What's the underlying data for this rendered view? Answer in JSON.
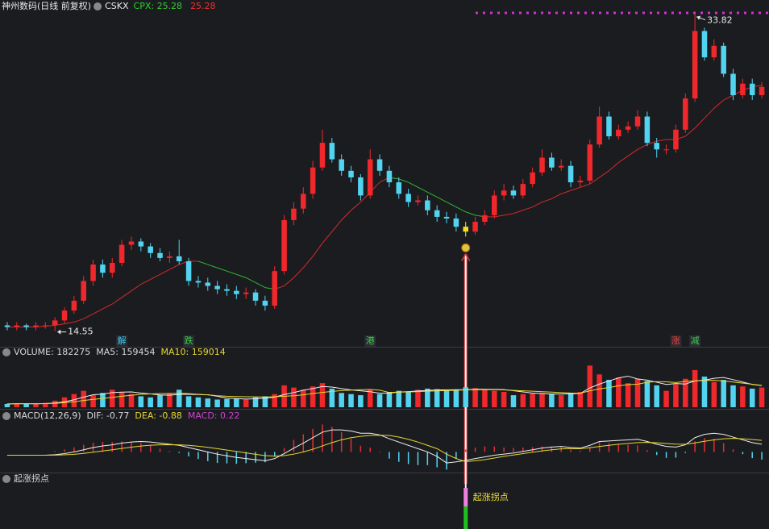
{
  "header": {
    "title": "神州数码(日线 前复权)",
    "indicator": "CSKX",
    "cpx": "CPX: 25.28",
    "cpx_value": "25.28"
  },
  "chart_data": [
    {
      "type": "candlestick",
      "open": [
        14.9,
        14.8,
        14.9,
        14.8,
        14.9,
        14.9,
        15.2,
        15.8,
        16.4,
        17.6,
        18.6,
        18.1,
        18.7,
        19.8,
        20.0,
        19.7,
        19.3,
        19.0,
        19.1,
        18.8,
        17.6,
        17.5,
        17.3,
        17.1,
        17.0,
        16.8,
        16.9,
        16.4,
        16.1,
        18.2,
        21.3,
        22.0,
        22.9,
        24.5,
        26.0,
        25.0,
        24.3,
        23.9,
        22.8,
        25.0,
        24.3,
        23.6,
        22.9,
        22.4,
        22.5,
        21.9,
        21.5,
        21.4,
        20.9,
        20.6,
        21.2,
        21.6,
        22.8,
        23.1,
        22.8,
        23.5,
        24.2,
        25.1,
        24.5,
        24.6,
        23.6,
        23.7,
        25.9,
        27.6,
        26.4,
        26.8,
        27.0,
        27.6,
        26.0,
        25.6,
        25.6,
        26.8,
        28.7,
        32.8,
        31.2,
        31.9,
        30.2,
        28.9,
        29.6,
        28.9
      ],
      "high": [
        15.1,
        15.1,
        15.0,
        15.1,
        15.1,
        15.4,
        16.0,
        16.7,
        17.9,
        18.9,
        18.9,
        19.0,
        20.1,
        20.3,
        20.2,
        19.9,
        19.6,
        19.4,
        20.1,
        19.0,
        17.9,
        17.8,
        17.6,
        17.4,
        17.3,
        17.2,
        17.1,
        16.7,
        18.5,
        21.6,
        22.4,
        23.3,
        24.9,
        26.8,
        26.3,
        25.3,
        24.6,
        24.1,
        25.6,
        25.3,
        24.6,
        23.9,
        23.2,
        22.8,
        22.8,
        22.2,
        21.8,
        21.7,
        21.2,
        21.5,
        21.9,
        23.1,
        23.5,
        23.4,
        23.8,
        24.5,
        25.6,
        25.4,
        25.0,
        24.9,
        24.0,
        26.2,
        28.2,
        27.9,
        27.1,
        27.3,
        28.0,
        27.9,
        26.3,
        25.9,
        27.1,
        29.0,
        33.82,
        33.0,
        32.3,
        32.1,
        30.5,
        29.9,
        29.9,
        29.7
      ],
      "low": [
        14.6,
        14.6,
        14.6,
        14.6,
        14.7,
        14.55,
        15.0,
        15.6,
        16.2,
        17.3,
        17.8,
        17.8,
        18.5,
        19.5,
        19.4,
        19.0,
        18.8,
        18.7,
        18.6,
        17.3,
        17.2,
        17.0,
        16.8,
        16.7,
        16.5,
        16.5,
        16.1,
        15.8,
        15.9,
        18.0,
        21.0,
        21.7,
        22.6,
        24.3,
        24.8,
        24.0,
        23.6,
        22.5,
        22.6,
        24.0,
        23.3,
        22.6,
        22.1,
        22.2,
        21.6,
        21.2,
        21.1,
        20.6,
        20.3,
        20.4,
        21.0,
        21.4,
        22.5,
        22.6,
        22.6,
        23.3,
        24.0,
        24.3,
        24.3,
        23.3,
        23.3,
        23.5,
        25.7,
        26.2,
        26.2,
        26.6,
        26.8,
        25.8,
        25.1,
        25.3,
        25.4,
        26.6,
        28.5,
        31.0,
        31.0,
        30.0,
        28.6,
        28.7,
        28.6,
        28.7
      ],
      "close": [
        14.8,
        14.9,
        14.8,
        14.9,
        14.9,
        15.2,
        15.8,
        16.4,
        17.6,
        18.6,
        18.1,
        18.7,
        19.8,
        20.0,
        19.7,
        19.3,
        19.0,
        19.1,
        18.8,
        17.6,
        17.5,
        17.3,
        17.1,
        17.0,
        16.8,
        16.9,
        16.4,
        16.1,
        18.2,
        21.3,
        22.0,
        22.9,
        24.5,
        26.0,
        25.0,
        24.3,
        23.9,
        22.8,
        25.0,
        24.3,
        23.6,
        22.9,
        22.4,
        22.5,
        21.9,
        21.5,
        21.4,
        20.9,
        20.6,
        21.2,
        21.6,
        22.8,
        23.1,
        22.8,
        23.5,
        24.2,
        25.1,
        24.5,
        24.6,
        23.6,
        23.7,
        25.9,
        27.6,
        26.4,
        26.8,
        27.0,
        27.6,
        26.0,
        25.6,
        25.6,
        26.8,
        28.7,
        32.8,
        31.2,
        31.9,
        30.2,
        28.9,
        29.6,
        28.9,
        29.4
      ],
      "ma": [
        14.8,
        14.8,
        14.8,
        14.8,
        14.85,
        14.9,
        15.0,
        15.1,
        15.3,
        15.6,
        15.9,
        16.2,
        16.6,
        17.0,
        17.4,
        17.7,
        18.0,
        18.3,
        18.6,
        18.8,
        18.8,
        18.6,
        18.4,
        18.2,
        18.0,
        17.8,
        17.5,
        17.2,
        17.1,
        17.3,
        17.8,
        18.4,
        19.1,
        19.9,
        20.6,
        21.3,
        21.9,
        22.4,
        23.0,
        23.6,
        23.9,
        23.8,
        23.6,
        23.3,
        23.0,
        22.7,
        22.4,
        22.1,
        21.8,
        21.6,
        21.5,
        21.5,
        21.6,
        21.7,
        21.9,
        22.1,
        22.4,
        22.6,
        22.9,
        23.1,
        23.3,
        23.5,
        23.9,
        24.3,
        24.8,
        25.2,
        25.6,
        25.9,
        26.1,
        26.2,
        26.2,
        26.4,
        26.9,
        27.5,
        28.1,
        28.6,
        28.9,
        29.2,
        29.4,
        29.5
      ],
      "ylim": [
        13.6,
        34.0
      ],
      "up_color": "#f0282c",
      "down_color": "#52d4f0",
      "ma_up_color": "#d42a2a",
      "ma_down_color": "#2fb82f",
      "highlight_index": 48,
      "highlight_color": "#f0e020",
      "events": [
        {
          "index": 12,
          "label": "解",
          "color": "#3cc8f0"
        },
        {
          "index": 19,
          "label": "跌",
          "color": "#3cd04a"
        },
        {
          "index": 38,
          "label": "港",
          "color": "#3cd04a"
        },
        {
          "index": 70,
          "label": "涨",
          "color": "#f04040"
        },
        {
          "index": 72,
          "label": "减",
          "color": "#3cd04a"
        }
      ]
    },
    {
      "type": "volume",
      "legend": [
        {
          "text": "VOLUME: 182275",
          "color": "#d8d8d8"
        },
        {
          "text": "MA5: 159454",
          "color": "#d8d8d8"
        },
        {
          "text": "MA10: 159014",
          "color": "#e8d830"
        }
      ],
      "values": [
        30000,
        35000,
        32000,
        28000,
        40000,
        60000,
        90000,
        120000,
        150000,
        110000,
        130000,
        160000,
        140000,
        120000,
        100000,
        90000,
        110000,
        130000,
        160000,
        100000,
        90000,
        80000,
        70000,
        75000,
        80000,
        70000,
        90000,
        100000,
        120000,
        200000,
        180000,
        160000,
        190000,
        220000,
        170000,
        130000,
        120000,
        110000,
        160000,
        120000,
        140000,
        150000,
        145000,
        160000,
        170000,
        165000,
        150000,
        155000,
        182275,
        175000,
        160000,
        150000,
        140000,
        110000,
        120000,
        125000,
        130000,
        120000,
        110000,
        130000,
        140000,
        380000,
        300000,
        250000,
        270000,
        220000,
        260000,
        240000,
        200000,
        150000,
        210000,
        260000,
        340000,
        280000,
        230000,
        250000,
        200000,
        190000,
        170000,
        180000
      ],
      "ma5": [
        30000,
        32000,
        32000,
        31000,
        33000,
        39000,
        50000,
        68000,
        92000,
        114000,
        120000,
        134000,
        138000,
        140000,
        130000,
        122000,
        112000,
        110000,
        118000,
        118000,
        116000,
        114000,
        100000,
        83000,
        79000,
        75000,
        77000,
        83000,
        92000,
        116000,
        134000,
        156000,
        170000,
        190000,
        184000,
        170000,
        158000,
        150000,
        142000,
        128000,
        130000,
        138000,
        143000,
        148000,
        153000,
        158000,
        158000,
        160000,
        159454,
        165000,
        164000,
        163000,
        161000,
        151000,
        140000,
        129000,
        125000,
        121000,
        121000,
        123000,
        126000,
        176000,
        212000,
        240000,
        268000,
        284000,
        258000,
        248000,
        228000,
        208000,
        216000,
        212000,
        240000,
        248000,
        264000,
        272000,
        252000,
        230000,
        208000,
        198000
      ],
      "ma10": [
        30000,
        31000,
        32000,
        32000,
        33000,
        35000,
        42000,
        50000,
        62000,
        72000,
        80000,
        90000,
        100000,
        110000,
        118000,
        122000,
        125000,
        125000,
        128000,
        124000,
        118000,
        113000,
        105000,
        100000,
        98000,
        96000,
        95000,
        93000,
        96000,
        100000,
        105000,
        113000,
        125000,
        135000,
        145000,
        152000,
        157000,
        160000,
        162000,
        156000,
        135000,
        138000,
        140000,
        143000,
        146000,
        149000,
        152000,
        155000,
        159014,
        160000,
        161000,
        160000,
        158000,
        154000,
        150000,
        146000,
        142000,
        138000,
        134000,
        130000,
        128000,
        150000,
        168000,
        180000,
        196000,
        206000,
        210000,
        228000,
        234000,
        232000,
        226000,
        236000,
        240000,
        244000,
        246000,
        240000,
        230000,
        220000,
        210000,
        200000
      ],
      "ylim": [
        0,
        420000
      ],
      "ma5_color": "#f0f0f0",
      "ma10_color": "#e8d830"
    },
    {
      "type": "macd",
      "legend": [
        {
          "text": "MACD(12,26,9)",
          "color": "#d8d8d8"
        },
        {
          "text": "DIF: -0.77",
          "color": "#d8d8d8"
        },
        {
          "text": "DEA: -0.88",
          "color": "#e8d830"
        },
        {
          "text": "MACD: 0.22",
          "color": "#d040d0"
        }
      ],
      "dif": [
        -0.3,
        -0.3,
        -0.3,
        -0.3,
        -0.3,
        -0.25,
        -0.15,
        0.0,
        0.2,
        0.4,
        0.55,
        0.65,
        0.8,
        0.9,
        0.95,
        0.9,
        0.8,
        0.7,
        0.6,
        0.4,
        0.2,
        0.0,
        -0.2,
        -0.35,
        -0.5,
        -0.6,
        -0.7,
        -0.8,
        -0.6,
        -0.15,
        0.35,
        0.8,
        1.3,
        1.8,
        2.0,
        2.0,
        1.9,
        1.7,
        1.7,
        1.55,
        1.2,
        0.9,
        0.6,
        0.3,
        0.0,
        -0.4,
        -1.0,
        -0.9,
        -0.77,
        -0.6,
        -0.45,
        -0.3,
        -0.2,
        -0.1,
        0.05,
        0.2,
        0.35,
        0.45,
        0.5,
        0.4,
        0.35,
        0.6,
        0.95,
        1.0,
        1.05,
        1.1,
        1.15,
        0.95,
        0.7,
        0.5,
        0.45,
        0.65,
        1.3,
        1.6,
        1.7,
        1.6,
        1.35,
        1.1,
        0.85,
        0.7
      ],
      "dea": [
        -0.3,
        -0.3,
        -0.3,
        -0.3,
        -0.3,
        -0.29,
        -0.26,
        -0.21,
        -0.13,
        -0.02,
        0.09,
        0.2,
        0.32,
        0.44,
        0.54,
        0.61,
        0.65,
        0.66,
        0.65,
        0.6,
        0.52,
        0.42,
        0.3,
        0.17,
        0.04,
        -0.09,
        -0.21,
        -0.33,
        -0.38,
        -0.33,
        -0.2,
        0.0,
        0.25,
        0.55,
        0.85,
        1.1,
        1.3,
        1.42,
        1.5,
        1.52,
        1.5,
        1.35,
        1.15,
        0.9,
        0.6,
        0.3,
        -0.2,
        -0.6,
        -0.88,
        -0.8,
        -0.7,
        -0.55,
        -0.4,
        -0.28,
        -0.15,
        -0.02,
        0.1,
        0.2,
        0.28,
        0.3,
        0.3,
        0.38,
        0.5,
        0.6,
        0.7,
        0.78,
        0.85,
        0.87,
        0.84,
        0.77,
        0.71,
        0.7,
        0.82,
        0.97,
        1.1,
        1.2,
        1.23,
        1.2,
        1.13,
        1.05
      ],
      "macd": [
        0,
        0,
        0,
        0,
        0,
        0.08,
        0.22,
        0.42,
        0.66,
        0.84,
        0.92,
        0.9,
        0.96,
        0.92,
        0.82,
        0.58,
        0.3,
        0.08,
        -0.1,
        -0.4,
        -0.64,
        -0.84,
        -1.0,
        -1.04,
        -1.08,
        -1.02,
        -0.98,
        -0.94,
        -0.44,
        0.36,
        1.1,
        1.6,
        2.1,
        2.5,
        2.3,
        1.8,
        1.2,
        0.56,
        0.4,
        0.06,
        -0.6,
        -0.9,
        -1.1,
        -1.2,
        -1.2,
        -1.4,
        -1.6,
        -0.6,
        0.22,
        0.4,
        0.5,
        0.5,
        0.4,
        0.36,
        0.4,
        0.44,
        0.5,
        0.5,
        0.44,
        0.2,
        0.1,
        0.44,
        0.9,
        0.8,
        0.7,
        0.64,
        0.6,
        0.16,
        -0.28,
        -0.54,
        -0.52,
        -0.1,
        0.96,
        1.26,
        1.2,
        0.8,
        0.24,
        -0.2,
        -0.56,
        -0.7
      ],
      "ylim": [
        -1.8,
        2.6
      ],
      "dif_color": "#f0f0f0",
      "dea_color": "#e8d830",
      "up_color": "#e03030",
      "down_color": "#52d4f0"
    },
    {
      "type": "signal",
      "legend": [
        {
          "text": "起涨拐点",
          "color": "#d8d8d8"
        }
      ],
      "index": 48,
      "label": "起涨拐点",
      "label_color": "#f0e040",
      "top_color": "#f080e0",
      "bottom_color": "#20c020"
    }
  ]
}
